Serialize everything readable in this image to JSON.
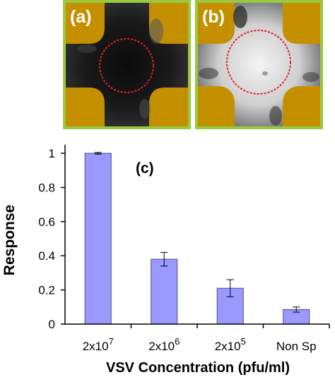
{
  "panels": [
    {
      "label": "(a)"
    },
    {
      "label": "(b)"
    }
  ],
  "colors": {
    "frame": "#99c940",
    "substrate": "#c49000",
    "bar_fill": "#9999ff",
    "bar_stroke": "#4a4a8a",
    "circle": "#e0202a"
  },
  "chart_data": {
    "type": "bar",
    "panel_label": "(c)",
    "categories": [
      "2x10^7",
      "2x10^6",
      "2x10^5",
      "Non Sp"
    ],
    "category_labels": [
      {
        "base": "2x10",
        "exp": "7"
      },
      {
        "base": "2x10",
        "exp": "6"
      },
      {
        "base": "2x10",
        "exp": "5"
      },
      {
        "base": "Non Sp",
        "exp": ""
      }
    ],
    "values": [
      1.0,
      0.38,
      0.21,
      0.085
    ],
    "errors": [
      0.005,
      0.04,
      0.05,
      0.015
    ],
    "xlabel": "VSV Concentration (pfu/ml)",
    "ylabel": "Response",
    "ylim": [
      0,
      1.05
    ],
    "yticks": [
      0,
      0.2,
      0.4,
      0.6,
      0.8,
      1
    ],
    "ytick_labels": [
      "0",
      "0.2",
      "0.4",
      "0.6",
      "0.8",
      "1"
    ],
    "grid": false,
    "legend": "none"
  }
}
